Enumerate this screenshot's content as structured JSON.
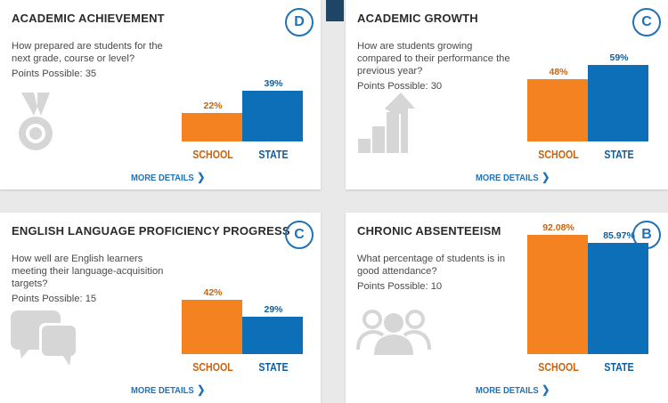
{
  "cards": [
    {
      "title": "ACADEMIC ACHIEVEMENT",
      "grade": "D",
      "question": "How prepared are students for the next grade, course or level?",
      "points": "Points Possible: 35",
      "icon": "medal-icon",
      "school": {
        "label": "SCHOOL",
        "value": 22,
        "display": "22%"
      },
      "state": {
        "label": "STATE",
        "value": 39,
        "display": "39%"
      },
      "more": "MORE DETAILS"
    },
    {
      "title": "ACADEMIC GROWTH",
      "grade": "C",
      "question": "How are students growing compared to their performance the previous year?",
      "points": "Points Possible: 30",
      "icon": "growth-arrow-icon",
      "school": {
        "label": "SCHOOL",
        "value": 48,
        "display": "48%"
      },
      "state": {
        "label": "STATE",
        "value": 59,
        "display": "59%"
      },
      "more": "MORE DETAILS"
    },
    {
      "title": "ENGLISH LANGUAGE PROFICIENCY PROGRESS",
      "grade": "C",
      "question": "How well are English learners meeting their language-acquisition targets?",
      "points": "Points Possible: 15",
      "icon": "speech-bubbles-icon",
      "school": {
        "label": "SCHOOL",
        "value": 42,
        "display": "42%"
      },
      "state": {
        "label": "STATE",
        "value": 29,
        "display": "29%"
      },
      "more": "MORE DETAILS"
    },
    {
      "title": "CHRONIC ABSENTEEISM",
      "grade": "B",
      "question": "What percentage of students is in good attendance?",
      "points": "Points Possible: 10",
      "icon": "people-group-icon",
      "school": {
        "label": "SCHOOL",
        "value": 92.08,
        "display": "92.08%"
      },
      "state": {
        "label": "STATE",
        "value": 85.97,
        "display": "85.97%"
      },
      "more": "MORE DETAILS"
    }
  ],
  "colors": {
    "school": "#f58220",
    "state": "#0d6fb8",
    "accent": "#1f72b8"
  }
}
